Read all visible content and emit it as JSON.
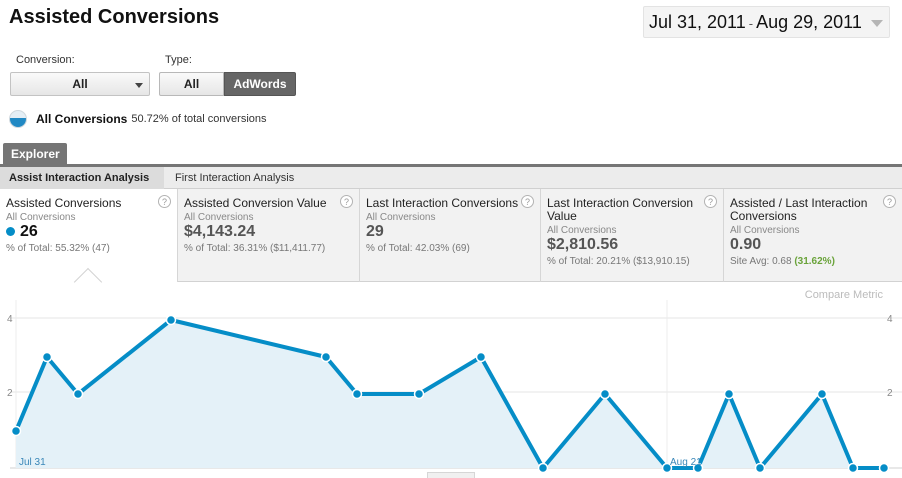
{
  "header": {
    "title": "Assisted Conversions",
    "date_start": "Jul 31, 2011",
    "date_sep": "-",
    "date_end": "Aug 29, 2011"
  },
  "filters": {
    "conversion_label": "Conversion:",
    "conversion_value": "All",
    "type_label": "Type:",
    "type_options": [
      "All",
      "AdWords"
    ],
    "type_selected": "AdWords"
  },
  "segment": {
    "name": "All Conversions",
    "pct_text": "50.72% of total conversions",
    "colors": [
      "#2189c4",
      "#e4eef5"
    ]
  },
  "tabs": {
    "explorer": "Explorer",
    "subtabs": [
      "Assist Interaction Analysis",
      "First Interaction Analysis"
    ],
    "active_subtab": "Assist Interaction Analysis"
  },
  "metrics": [
    {
      "title": "Assisted Conversions",
      "sub": "All Conversions",
      "value": "26",
      "foot_pre": "% of Total: ",
      "foot_hl": "55.32% (47)",
      "help": "?"
    },
    {
      "title": "Assisted Conversion Value",
      "sub": "All Conversions",
      "value": "$4,143.24",
      "foot_pre": "% of Total: ",
      "foot_hl": "36.31% ($11,411.77)",
      "help": "?"
    },
    {
      "title": "Last Interaction Conversions",
      "sub": "All Conversions",
      "value": "29",
      "foot_pre": "% of Total: ",
      "foot_hl": "42.03% (69)",
      "help": "?"
    },
    {
      "title": "Last Interaction Conversion Value",
      "sub": "All Conversions",
      "value": "$2,810.56",
      "foot_pre": "% of Total: ",
      "foot_hl": "20.21% ($13,910.15)",
      "help": "?"
    },
    {
      "title": "Assisted / Last Interaction Conversions",
      "sub": "All Conversions",
      "value": "0.90",
      "foot_pre": "Site Avg: ",
      "foot_val": "0.68",
      "foot_hl": "(31.62%)",
      "help": "?"
    }
  ],
  "compare_label": "Compare Metric",
  "chart_data": {
    "type": "area",
    "series": [
      {
        "values": [
          1,
          3,
          2,
          4,
          3,
          2,
          2,
          3,
          0,
          2,
          0,
          0,
          2,
          0,
          2,
          0,
          0
        ]
      }
    ],
    "x_indices": [
      0,
      1,
      2,
      5,
      10,
      11,
      13,
      15,
      17,
      19,
      21,
      22,
      23,
      24,
      26,
      27,
      28
    ],
    "x_tick_labels": [
      "Jul 31",
      "Aug 21"
    ],
    "y_tick_labels_left": [
      "4",
      "2"
    ],
    "y_tick_labels_right": [
      "4",
      "2"
    ],
    "ylim": [
      0,
      4.3
    ],
    "grid": true,
    "line_color": "#058dc7",
    "fill_color": "#e4f1f8"
  }
}
